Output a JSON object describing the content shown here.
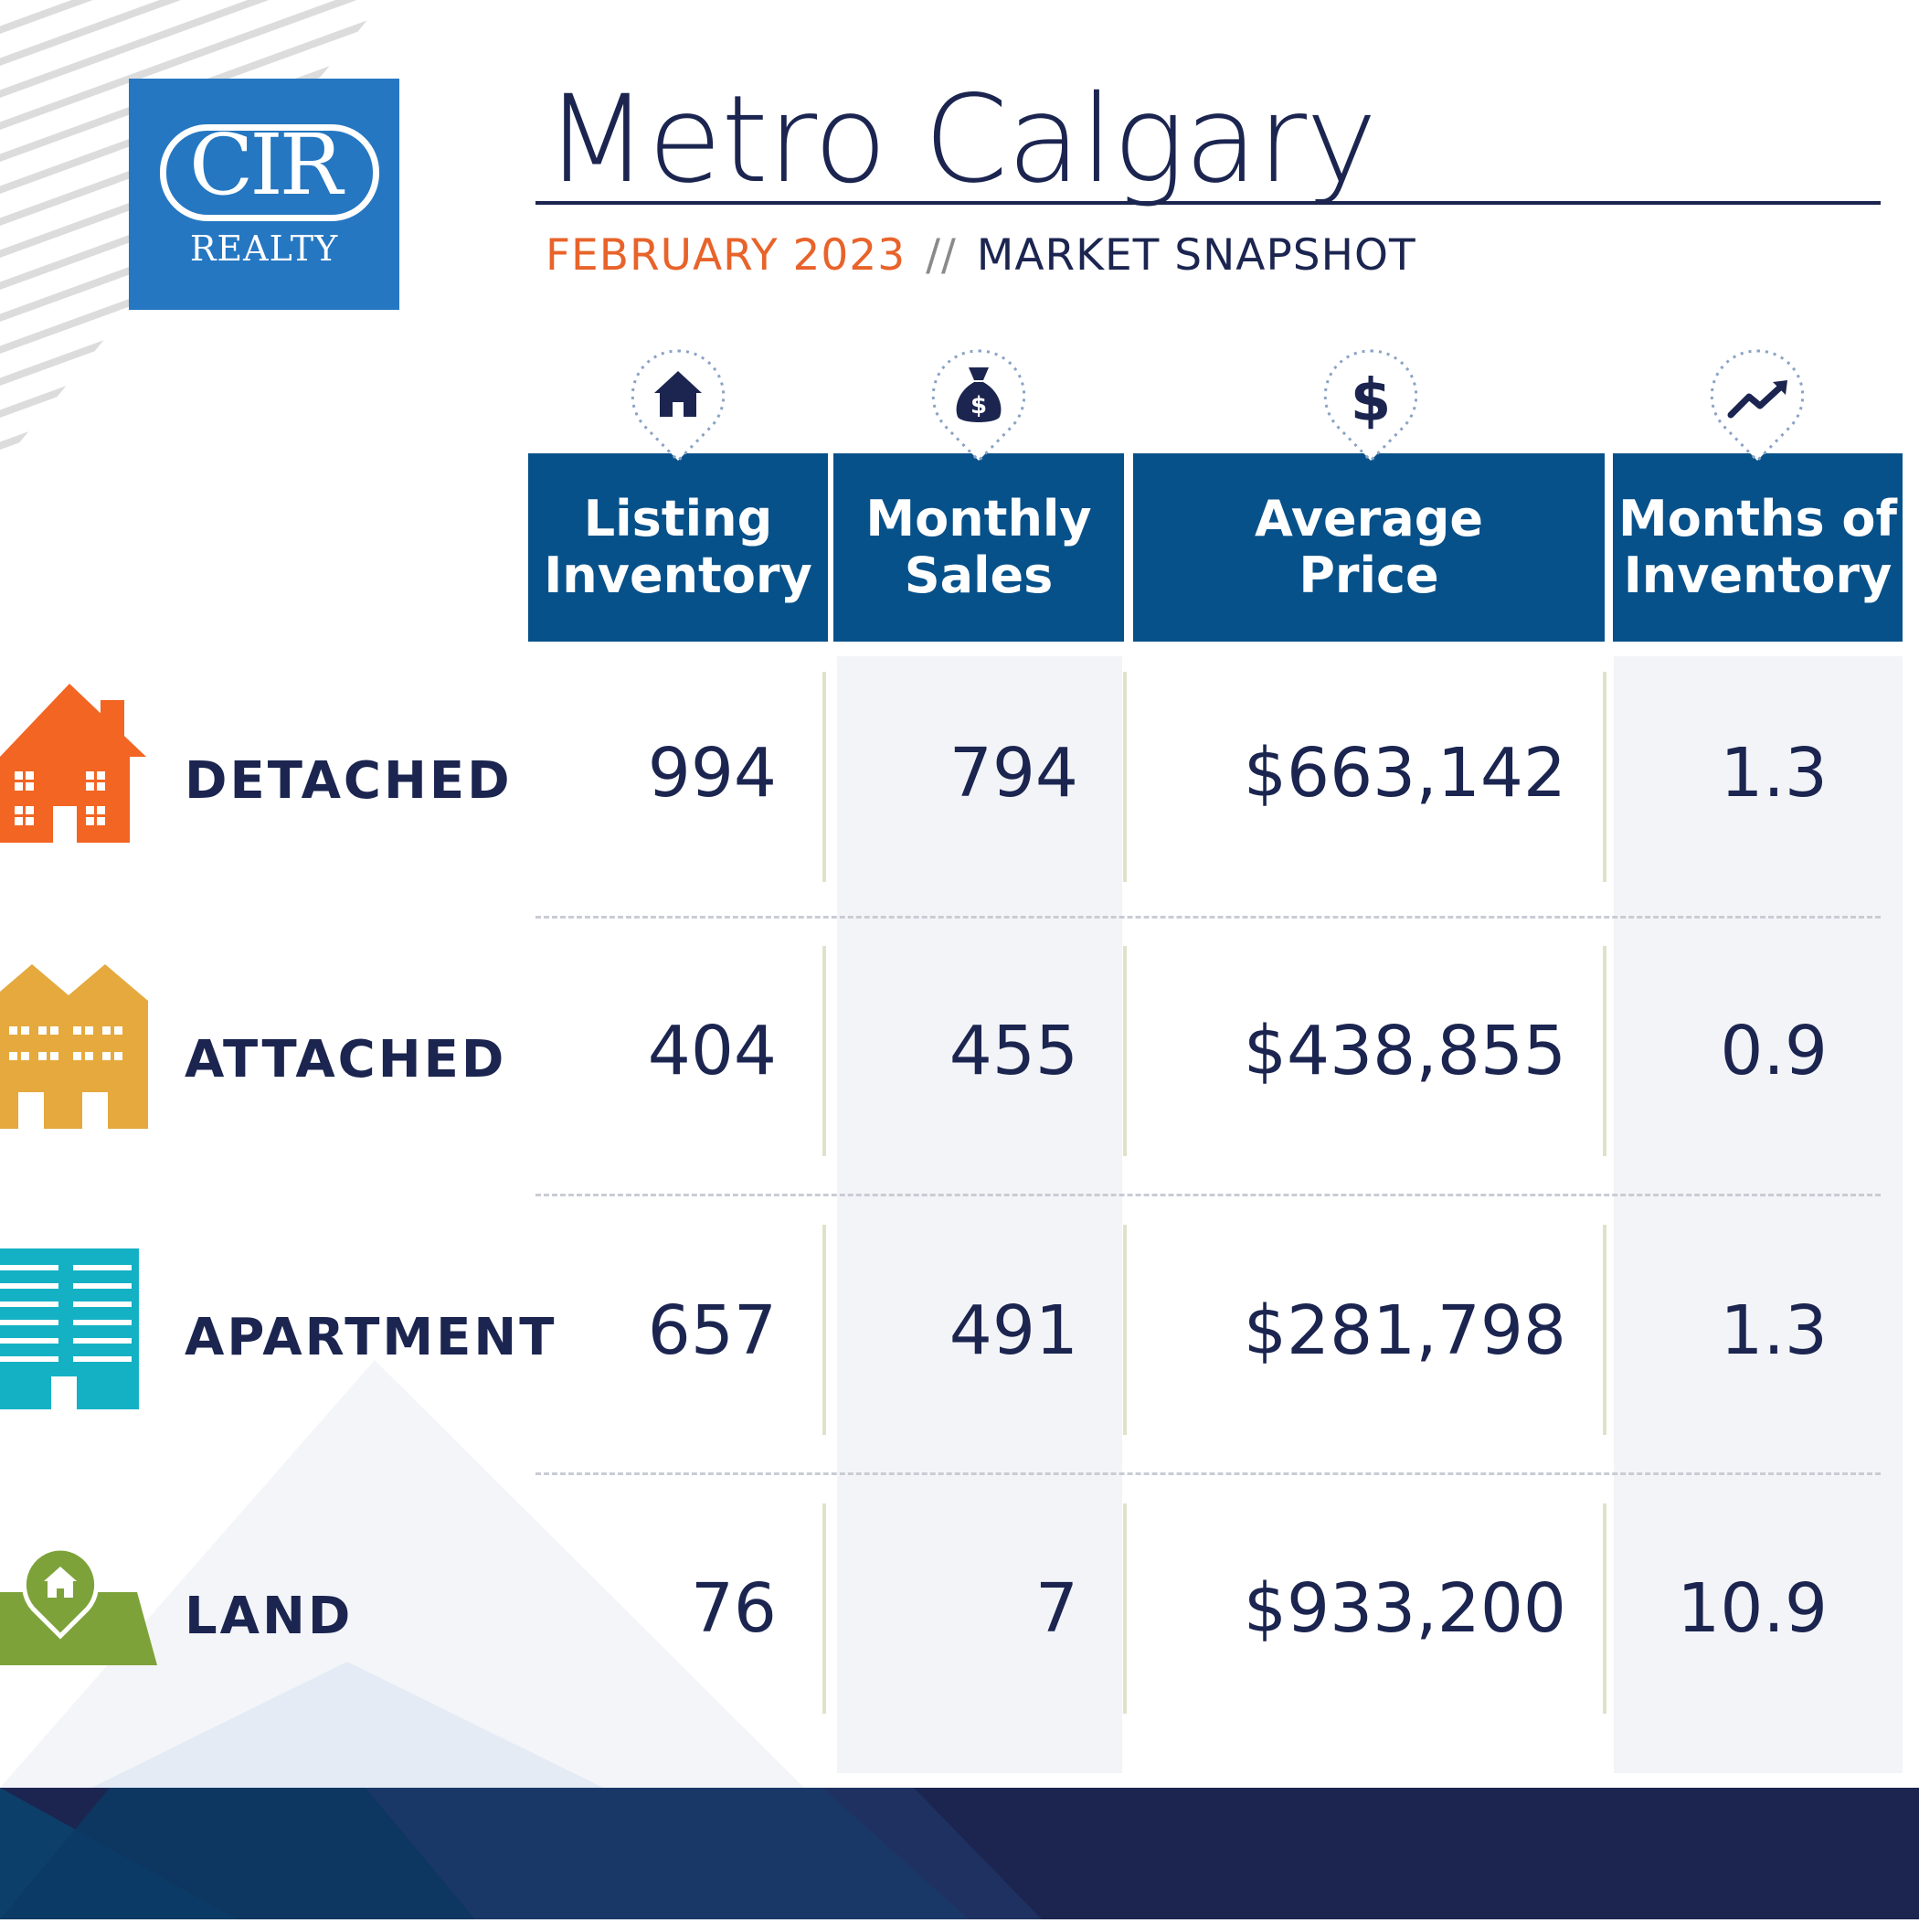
{
  "brand": {
    "logo_mark": "CIR",
    "logo_sub": "REALTY",
    "blue": "#2577c2"
  },
  "header": {
    "title": "Metro Calgary",
    "date": "FEBRUARY 2023",
    "separator": "//",
    "label": "MARKET SNAPSHOT"
  },
  "columns": [
    {
      "icon": "house-icon",
      "line1": "Listing",
      "line2": "Inventory"
    },
    {
      "icon": "money-bag-icon",
      "line1": "Monthly",
      "line2": "Sales"
    },
    {
      "icon": "dollar-icon",
      "line1": "Average",
      "line2": "Price"
    },
    {
      "icon": "trend-up-icon",
      "line1": "Months of",
      "line2": "Inventory"
    }
  ],
  "rows": [
    {
      "label": "DETACHED",
      "icon": "detached-house-icon",
      "color": "#f26522",
      "values": [
        "994",
        "794",
        "$663,142",
        "1.3"
      ]
    },
    {
      "label": "ATTACHED",
      "icon": "attached-house-icon",
      "color": "#e5a93d",
      "values": [
        "404",
        "455",
        "$438,855",
        "0.9"
      ]
    },
    {
      "label": "APARTMENT",
      "icon": "apartment-building-icon",
      "color": "#14b1c4",
      "values": [
        "657",
        "491",
        "$281,798",
        "1.3"
      ]
    },
    {
      "label": "LAND",
      "icon": "land-plot-icon",
      "color": "#7ea23a",
      "values": [
        "76",
        "7",
        "$933,200",
        "10.9"
      ]
    }
  ],
  "colors": {
    "navy": "#1b2550",
    "header_blue": "#07518a",
    "accent_orange": "#e8632a"
  }
}
